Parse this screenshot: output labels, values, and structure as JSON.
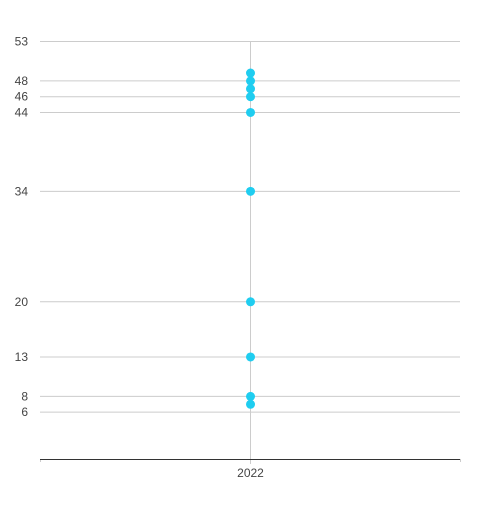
{
  "chart_data": {
    "type": "scatter",
    "title": "",
    "xlabel": "",
    "ylabel": "",
    "x_categories": [
      "2022"
    ],
    "y_ticks": [
      53,
      48,
      46,
      44,
      34,
      20,
      13,
      8,
      6
    ],
    "ylim": [
      0,
      53
    ],
    "grid": true,
    "series": [
      {
        "color": "#1fcdf0",
        "points": [
          {
            "x": "2022",
            "y": 49
          },
          {
            "x": "2022",
            "y": 48
          },
          {
            "x": "2022",
            "y": 47
          },
          {
            "x": "2022",
            "y": 46
          },
          {
            "x": "2022",
            "y": 44
          },
          {
            "x": "2022",
            "y": 34
          },
          {
            "x": "2022",
            "y": 20
          },
          {
            "x": "2022",
            "y": 13
          },
          {
            "x": "2022",
            "y": 8
          },
          {
            "x": "2022",
            "y": 7
          }
        ]
      }
    ],
    "colors": {
      "grid": "#cccccc",
      "axis": "#333333",
      "tick_text": "#444444"
    }
  }
}
